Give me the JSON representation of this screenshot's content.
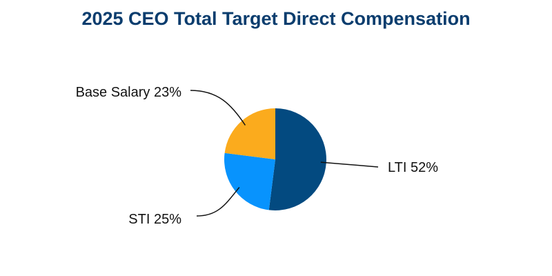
{
  "chart_data": {
    "type": "pie",
    "title": "2025 CEO Total Target Direct Compensation",
    "slices": [
      {
        "name": "LTI",
        "value": 52,
        "label": "LTI 52%",
        "color": "#034a80"
      },
      {
        "name": "STI",
        "value": 25,
        "label": "STI 25%",
        "color": "#0893fd"
      },
      {
        "name": "Base Salary",
        "value": 23,
        "label": "Base Salary 23%",
        "color": "#fbab1d"
      }
    ],
    "start": "12 o'clock",
    "direction": "clockwise"
  },
  "colors": {
    "title": "#0b3d6e",
    "text": "#111111",
    "leader": "#111111"
  }
}
